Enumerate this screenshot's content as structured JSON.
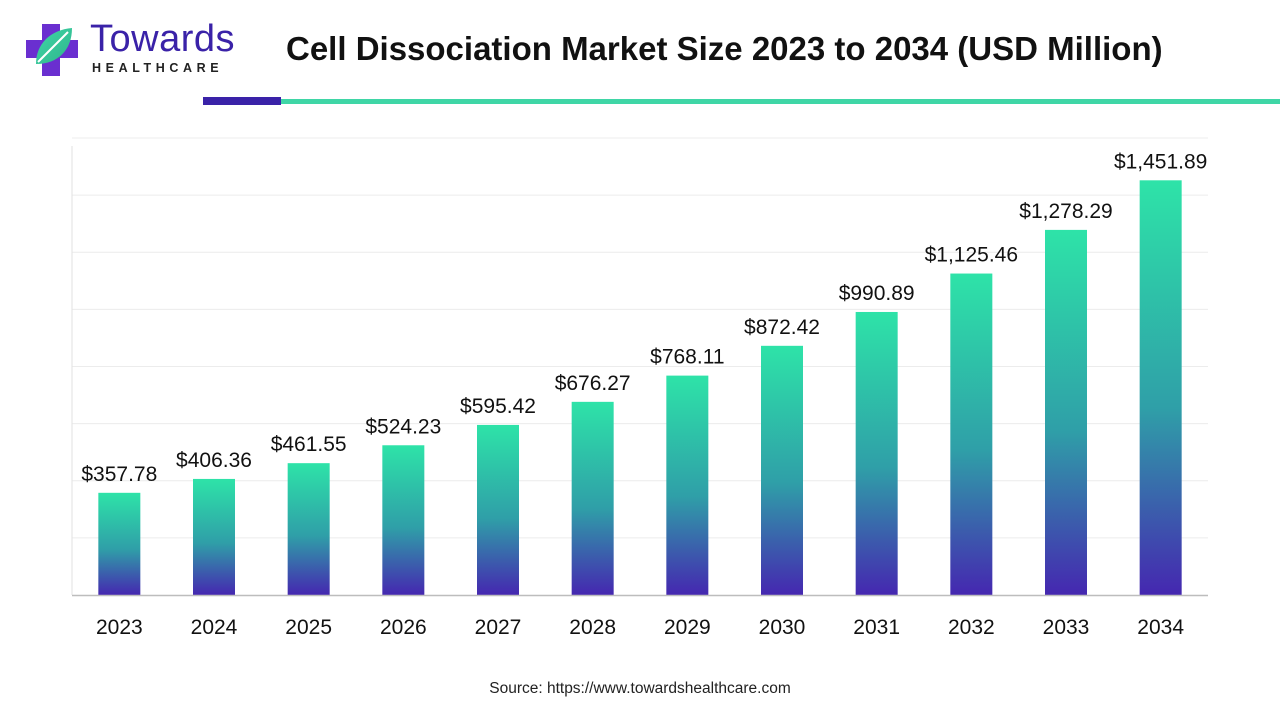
{
  "brand": {
    "name": "Towards",
    "subname": "HEALTHCARE",
    "colors": {
      "primary": "#3a22a8",
      "accent": "#3fd6a6"
    }
  },
  "header": {
    "title": "Cell Dissociation Market Size 2023 to 2034 (USD Million)"
  },
  "footer": {
    "source": "Source: https://www.towardshealthcare.com"
  },
  "chart_data": {
    "type": "bar",
    "categories": [
      "2023",
      "2024",
      "2025",
      "2026",
      "2027",
      "2028",
      "2029",
      "2030",
      "2031",
      "2032",
      "2033",
      "2034"
    ],
    "values": [
      357.78,
      406.36,
      461.55,
      524.23,
      595.42,
      676.27,
      768.11,
      872.42,
      990.89,
      1125.46,
      1278.29,
      1451.89
    ],
    "data_labels": [
      "$357.78",
      "$406.36",
      "$461.55",
      "$524.23",
      "$595.42",
      "$676.27",
      "$768.11",
      "$872.42",
      "$990.89",
      "$1,125.46",
      "$1,278.29",
      "$1,451.89"
    ],
    "ylim": [
      0,
      1600
    ],
    "grid": true,
    "bar_gradient": {
      "top": "#2ee3a8",
      "bottom": "#4527b0"
    }
  }
}
